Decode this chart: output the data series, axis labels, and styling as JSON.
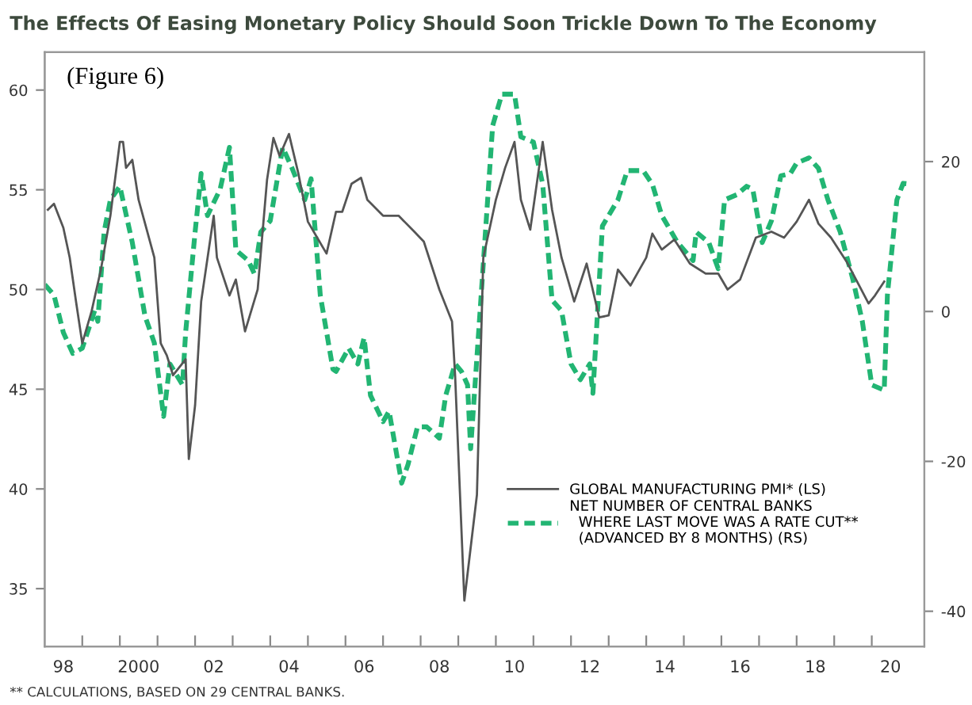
{
  "chart_data": {
    "type": "line",
    "title": "The Effects Of Easing Monetary Policy Should Soon Trickle Down To The Economy",
    "annotations": [
      "(Figure 6)",
      "** CALCULATIONS, BASED ON 29 CENTRAL BANKS."
    ],
    "xlim": [
      "1998-01",
      "2021-05-26"
    ],
    "xticks": [
      {
        "value": "1998-07",
        "label": "98"
      },
      {
        "value": "2000-07",
        "label": "2000"
      },
      {
        "value": "2002-07",
        "label": "02"
      },
      {
        "value": "2004-07",
        "label": "04"
      },
      {
        "value": "2006-07",
        "label": "06"
      },
      {
        "value": "2008-07",
        "label": "08"
      },
      {
        "value": "2010-07",
        "label": "10"
      },
      {
        "value": "2012-07",
        "label": "12"
      },
      {
        "value": "2014-07",
        "label": "14"
      },
      {
        "value": "2016-07",
        "label": "16"
      },
      {
        "value": "2018-07",
        "label": "18"
      },
      {
        "value": "2020-07",
        "label": "20"
      },
      {
        "value": "1999",
        "label": null
      },
      {
        "value": "2000",
        "label": null
      },
      {
        "value": "2001",
        "label": null
      },
      {
        "value": "2002",
        "label": null
      },
      {
        "value": "2003",
        "label": null
      },
      {
        "value": "2004",
        "label": null
      },
      {
        "value": "2005",
        "label": null
      },
      {
        "value": "2006",
        "label": null
      },
      {
        "value": "2007",
        "label": null
      },
      {
        "value": "2008",
        "label": null
      },
      {
        "value": "2009",
        "label": null
      },
      {
        "value": "2010",
        "label": null
      },
      {
        "value": "2011",
        "label": null
      },
      {
        "value": "2012",
        "label": null
      },
      {
        "value": "2013",
        "label": null
      },
      {
        "value": "2014",
        "label": null
      },
      {
        "value": "2015",
        "label": null
      },
      {
        "value": "2016",
        "label": null
      },
      {
        "value": "2017",
        "label": null
      },
      {
        "value": "2018",
        "label": null
      },
      {
        "value": "2019",
        "label": null
      },
      {
        "value": "2020",
        "label": null
      }
    ],
    "ylim": [
      32.1,
      61.9
    ],
    "yticks": [
      35,
      40,
      45,
      50,
      55,
      60
    ],
    "y2lim": [
      -44.7,
      34.6
    ],
    "y2ticks": [
      -40,
      -20,
      0,
      20
    ],
    "grid": false,
    "legend": "bottom right",
    "marker": "none",
    "series": [
      {
        "name": "GLOBAL MANUFACTURING PMI* (LS)",
        "color": "#555555",
        "line_style": "solid",
        "x": [
          "1998-02",
          "1998-04",
          "1998-07",
          "1998-09",
          "1998-11",
          "1999-01",
          "1999-04",
          "1999-07",
          "1999-10",
          "2000-01",
          "2000-02",
          "2000-03",
          "2000-05",
          "2000-07",
          "2000-12",
          "2001-02",
          "2001-04",
          "2001-06",
          "2001-10",
          "2001-11",
          "2002-01",
          "2002-03",
          "2002-07",
          "2002-08",
          "2002-12",
          "2003-02",
          "2003-05",
          "2003-09",
          "2003-12",
          "2004-02",
          "2004-04",
          "2004-07",
          "2004-10",
          "2005-01",
          "2005-04",
          "2005-07",
          "2005-10",
          "2005-12",
          "2006-03",
          "2006-06",
          "2006-08",
          "2007-01",
          "2007-06",
          "2007-11",
          "2008-02",
          "2008-07",
          "2008-11",
          "2008-12",
          "2009-03",
          "2009-07",
          "2009-09",
          "2010-01",
          "2010-04",
          "2010-07",
          "2010-09",
          "2010-12",
          "2011-04",
          "2011-07",
          "2011-10",
          "2012-02",
          "2012-06",
          "2012-10",
          "2013-01",
          "2013-04",
          "2013-08",
          "2014-01",
          "2014-03",
          "2014-06",
          "2014-10",
          "2015-03",
          "2015-08",
          "2015-12",
          "2016-03",
          "2016-07",
          "2016-12",
          "2017-05",
          "2017-09",
          "2018-01",
          "2018-05",
          "2018-08",
          "2018-12",
          "2019-05",
          "2019-08",
          "2019-12",
          "2020-02",
          "2020-05"
        ],
        "values": [
          54.0,
          54.3,
          53.1,
          51.6,
          49.4,
          47.3,
          48.9,
          51.0,
          53.7,
          57.4,
          57.4,
          56.1,
          56.5,
          54.5,
          51.6,
          47.3,
          46.7,
          45.7,
          46.5,
          41.5,
          44.2,
          49.4,
          53.7,
          51.6,
          49.7,
          50.5,
          47.9,
          50.0,
          55.5,
          57.6,
          56.7,
          57.8,
          55.8,
          53.4,
          52.6,
          51.8,
          53.9,
          53.9,
          55.3,
          55.6,
          54.5,
          53.7,
          53.7,
          52.9,
          52.4,
          50.0,
          48.4,
          45.7,
          34.4,
          39.7,
          51.6,
          54.5,
          56.1,
          57.4,
          54.5,
          53.0,
          57.4,
          54.0,
          51.6,
          49.4,
          51.3,
          48.6,
          48.7,
          51.0,
          50.2,
          51.6,
          52.8,
          52.0,
          52.5,
          51.3,
          50.8,
          50.8,
          50.0,
          50.5,
          52.6,
          52.9,
          52.6,
          53.4,
          54.5,
          53.3,
          52.6,
          51.4,
          50.5,
          49.3,
          49.7,
          50.4
        ]
      },
      {
        "name": "NET NUMBER OF CENTRAL BANKS\n  WHERE LAST MOVE WAS A RATE CUT**\n  (ADVANCED BY 8 MONTHS) (RS)",
        "color": "#22b573",
        "line_style": "dashed",
        "axis": "y2",
        "x": [
          "1998-01",
          "1998-04",
          "1998-07",
          "1998-10",
          "1999-01",
          "1999-05",
          "1999-06",
          "1999-08",
          "1999-10",
          "2000-01",
          "2000-05",
          "2000-09",
          "2000-12",
          "2001-03",
          "2001-05",
          "2001-09",
          "2001-10",
          "2002-01",
          "2002-03",
          "2002-05",
          "2002-09",
          "2002-12",
          "2003-02",
          "2003-06",
          "2003-08",
          "2003-10",
          "2004-01",
          "2004-05",
          "2004-08",
          "2004-12",
          "2005-02",
          "2005-05",
          "2005-09",
          "2005-10",
          "2006-02",
          "2006-05",
          "2006-07",
          "2006-09",
          "2007-01",
          "2007-03",
          "2007-07",
          "2007-09",
          "2007-12",
          "2008-03",
          "2008-07",
          "2008-09",
          "2008-12",
          "2009-02",
          "2009-04",
          "2009-05",
          "2009-08",
          "2009-12",
          "2010-03",
          "2010-07",
          "2010-09",
          "2011-01",
          "2011-04",
          "2011-07",
          "2011-10",
          "2012-01",
          "2012-04",
          "2012-07",
          "2012-08",
          "2012-11",
          "2013-04",
          "2013-07",
          "2013-12",
          "2014-03",
          "2014-06",
          "2014-11",
          "2015-04",
          "2015-05",
          "2015-09",
          "2015-12",
          "2016-02",
          "2016-06",
          "2016-09",
          "2016-11",
          "2017-02",
          "2017-05",
          "2017-08",
          "2017-11",
          "2018-01",
          "2018-05",
          "2018-08",
          "2018-11",
          "2019-03",
          "2019-07",
          "2019-10",
          "2020-01",
          "2020-05",
          "2020-06",
          "2020-09",
          "2020-11",
          "2021-01"
        ],
        "values": [
          3.6,
          2.2,
          -2.8,
          -5.6,
          -4.9,
          0.1,
          -1.3,
          10.6,
          14.9,
          16.7,
          9.2,
          -0.6,
          -4.2,
          -14.0,
          -7.0,
          -9.8,
          -2.8,
          10.6,
          18.4,
          12.8,
          16.3,
          21.9,
          8.2,
          6.8,
          5.0,
          10.6,
          12.1,
          21.9,
          19.1,
          14.9,
          17.7,
          2.2,
          -7.7,
          -8.0,
          -4.9,
          -7.0,
          -3.5,
          -11.2,
          -14.7,
          -13.3,
          -22.9,
          -20.4,
          -15.4,
          -15.4,
          -16.9,
          -11.2,
          -7.0,
          -8.0,
          -9.8,
          -18.3,
          0.1,
          24.8,
          29.0,
          29.0,
          23.3,
          22.6,
          17.0,
          1.5,
          0.1,
          -7.0,
          -9.1,
          -7.0,
          -10.9,
          11.4,
          14.9,
          18.8,
          18.8,
          17.0,
          12.8,
          9.2,
          6.8,
          10.6,
          9.2,
          5.7,
          14.9,
          15.6,
          16.7,
          16.3,
          9.2,
          12.1,
          18.1,
          18.4,
          19.8,
          20.5,
          19.1,
          14.9,
          10.6,
          4.3,
          -1.3,
          -9.8,
          -10.5,
          2.2,
          14.9,
          17.1,
          17.0
        ]
      }
    ]
  }
}
